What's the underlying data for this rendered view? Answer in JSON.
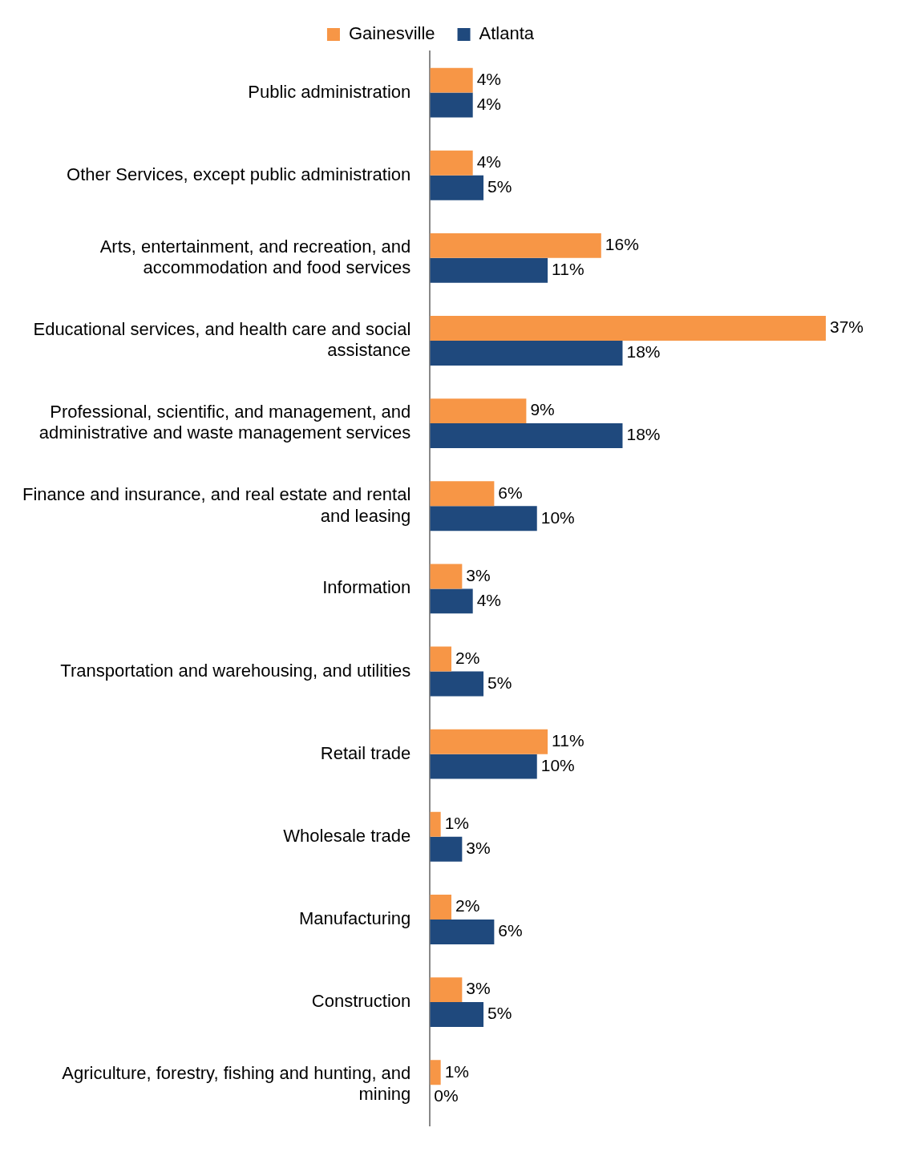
{
  "chart_data": {
    "type": "bar",
    "orientation": "horizontal",
    "legend": "top",
    "grid": false,
    "categories": [
      "Public administration",
      "Other Services, except public administration",
      "Arts, entertainment, and recreation, and accommodation and food services",
      "Educational services, and health care and social assistance",
      "Professional, scientific, and management, and administrative and waste management services",
      "Finance and insurance, and real estate and rental and leasing",
      "Information",
      "Transportation and warehousing, and utilities",
      "Retail trade",
      "Wholesale trade",
      "Manufacturing",
      "Construction",
      "Agriculture, forestry, fishing and hunting, and mining"
    ],
    "series": [
      {
        "name": "Gainesville",
        "color": "#f79646",
        "values": [
          4,
          4,
          16,
          37,
          9,
          6,
          3,
          2,
          11,
          1,
          2,
          3,
          1
        ],
        "value_labels": [
          "4%",
          "4%",
          "16%",
          "37%",
          "9%",
          "6%",
          "3%",
          "2%",
          "11%",
          "1%",
          "2%",
          "3%",
          "1%"
        ]
      },
      {
        "name": "Atlanta",
        "color": "#1f497d",
        "values": [
          4,
          5,
          11,
          18,
          18,
          10,
          4,
          5,
          10,
          3,
          6,
          5,
          0
        ],
        "value_labels": [
          "4%",
          "5%",
          "11%",
          "18%",
          "18%",
          "10%",
          "4%",
          "5%",
          "10%",
          "3%",
          "6%",
          "5%",
          "0%"
        ]
      }
    ]
  }
}
